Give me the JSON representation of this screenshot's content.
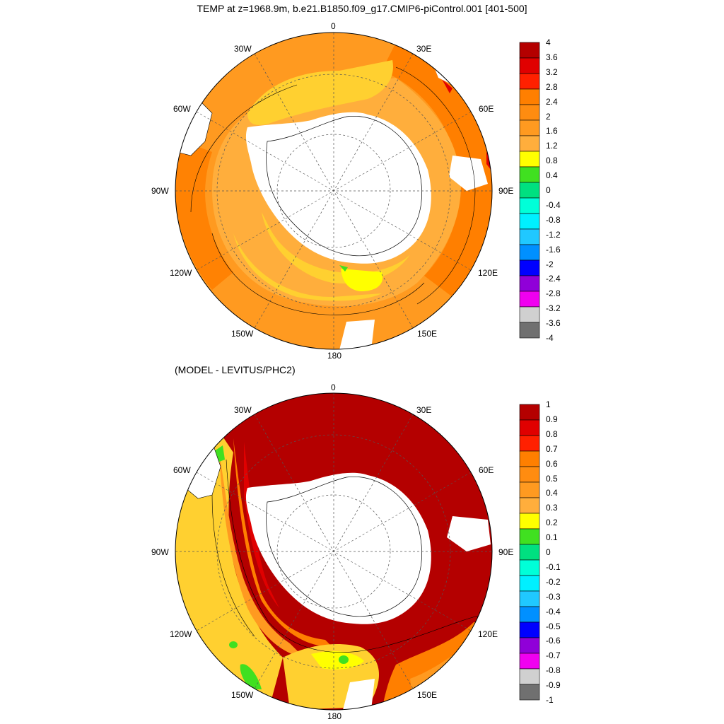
{
  "top_panel": {
    "title": "TEMP at z=1968.9m, b.e21.B1850.f09_g17.CMIP6-piControl.001 [401-500]",
    "lon_labels": [
      "0",
      "30E",
      "60E",
      "90E",
      "120E",
      "150E",
      "180",
      "150W",
      "120W",
      "90W",
      "60W",
      "30W"
    ],
    "colorbar_labels": [
      "4",
      "3.6",
      "3.2",
      "2.8",
      "2.4",
      "2",
      "1.6",
      "1.2",
      "0.8",
      "0.4",
      "0",
      "-0.4",
      "-0.8",
      "-1.2",
      "-1.6",
      "-2",
      "-2.4",
      "-2.8",
      "-3.2",
      "-3.6",
      "-4"
    ]
  },
  "bottom_panel": {
    "title": "(MODEL - LEVITUS/PHC2)",
    "lon_labels": [
      "0",
      "30E",
      "60E",
      "90E",
      "120E",
      "150E",
      "180",
      "150W",
      "120W",
      "90W",
      "60W",
      "30W"
    ],
    "colorbar_labels": [
      "1",
      "0.9",
      "0.8",
      "0.7",
      "0.6",
      "0.5",
      "0.4",
      "0.3",
      "0.2",
      "0.1",
      "0",
      "-0.1",
      "-0.2",
      "-0.3",
      "-0.4",
      "-0.5",
      "-0.6",
      "-0.7",
      "-0.8",
      "-0.9",
      "-1"
    ]
  },
  "colors": {
    "palette": [
      "#b40000",
      "#e00000",
      "#ff2000",
      "#ff7f00",
      "#ff9a20",
      "#ffae3c",
      "#ffd030",
      "#ffff00",
      "#40e020",
      "#00e080",
      "#00ffd8",
      "#00f0ff",
      "#20c8ff",
      "#0090ff",
      "#0000ff",
      "#9000d8",
      "#f000f0",
      "#d0d0d0",
      "#707070"
    ],
    "land": "#ffffff",
    "graticule": "#555555"
  }
}
